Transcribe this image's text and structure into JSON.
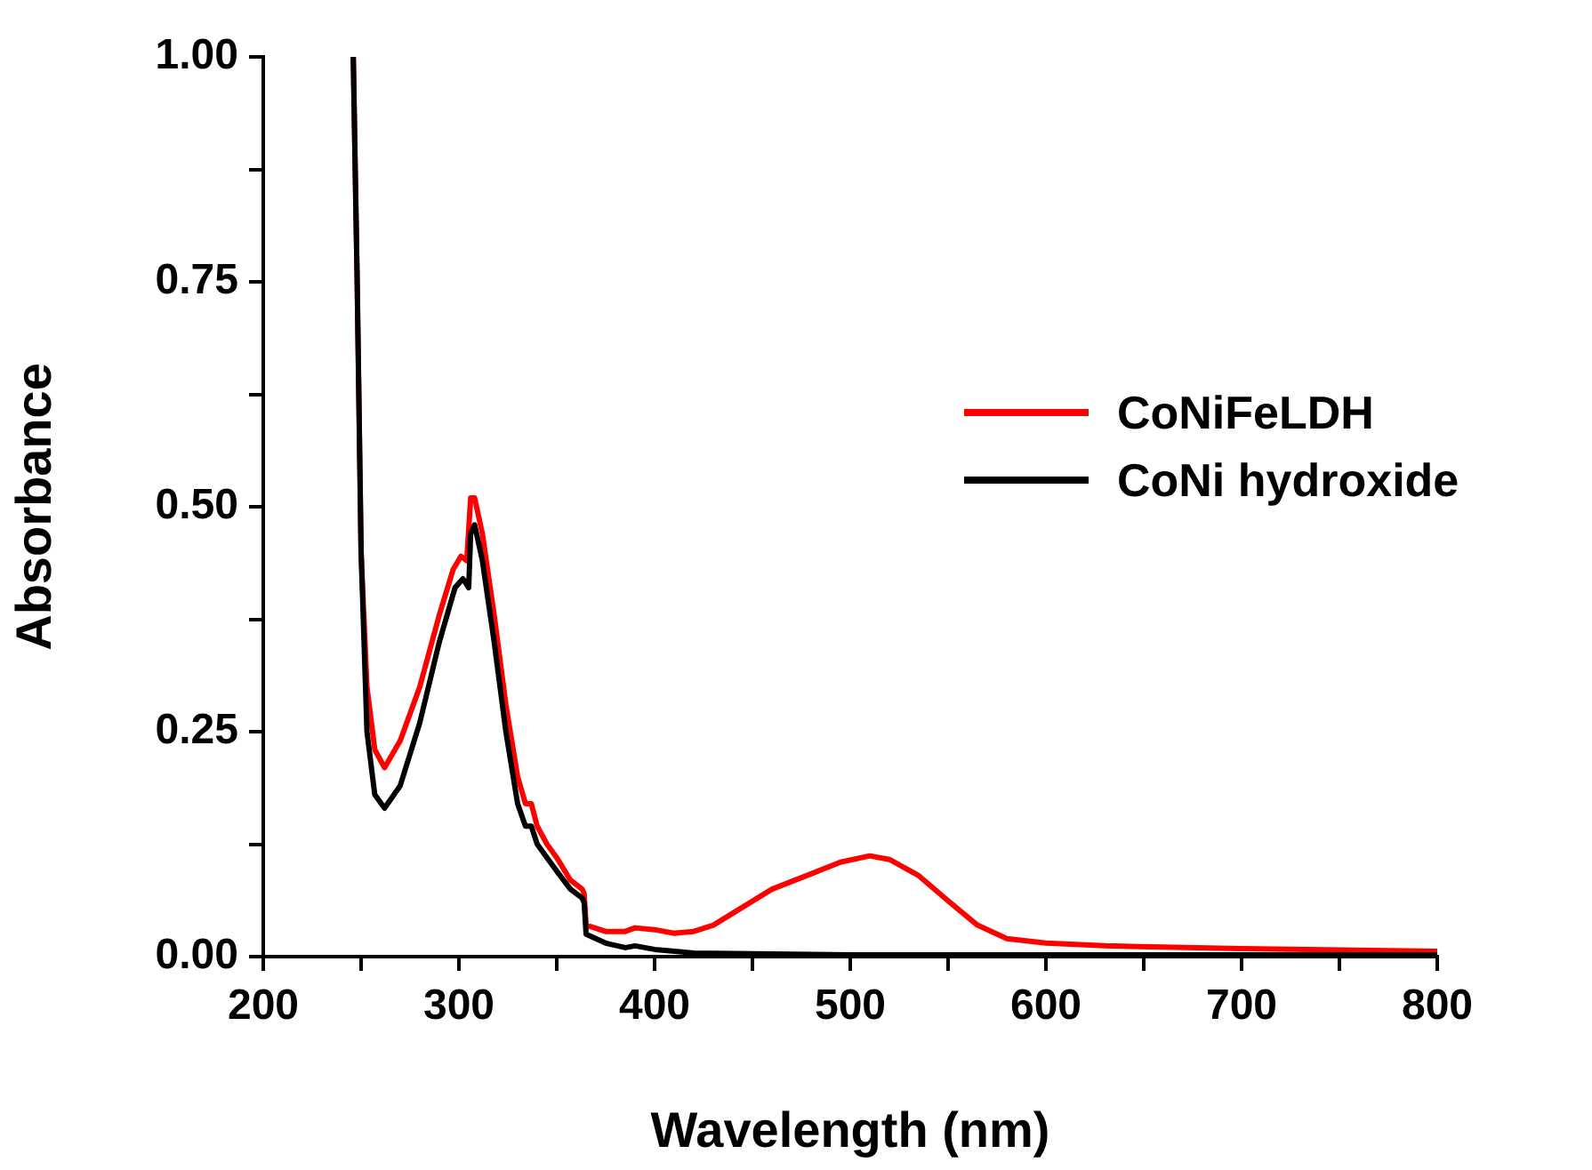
{
  "chart_data": {
    "type": "line",
    "xlabel": "Wavelength (nm)",
    "ylabel": "Absorbance",
    "xlim": [
      200,
      800
    ],
    "ylim": [
      0,
      1
    ],
    "xticks": [
      200,
      {
        "value": 250,
        "label": null
      },
      300,
      {
        "value": 350,
        "label": null
      },
      400,
      {
        "value": 450,
        "label": null
      },
      500,
      {
        "value": 550,
        "label": null
      },
      600,
      {
        "value": 650,
        "label": null
      },
      700,
      {
        "value": 750,
        "label": null
      },
      800
    ],
    "yticks": [
      "0.00",
      {
        "value": 0.125,
        "label": null
      },
      {
        "value": 0.25,
        "label": "0.25"
      },
      {
        "value": 0.375,
        "label": null
      },
      {
        "value": 0.5,
        "label": "0.50"
      },
      {
        "value": 0.625,
        "label": null
      },
      {
        "value": 0.75,
        "label": "0.75"
      },
      {
        "value": 0.875,
        "label": null
      },
      {
        "value": 1,
        "label": "1.00"
      }
    ],
    "grid": false,
    "legend": "right",
    "marker": "none",
    "line_style": "solid",
    "series": [
      {
        "name": "CoNiFeLDH",
        "color": "#ff0000",
        "x": [
          246,
          248,
          250,
          253,
          257,
          262,
          270,
          280,
          290,
          297,
          301,
          304,
          306,
          308,
          312,
          318,
          324,
          330,
          334,
          337,
          340,
          345,
          350,
          357,
          363,
          364,
          365,
          375,
          385,
          390,
          400,
          410,
          420,
          430,
          445,
          460,
          480,
          495,
          510,
          520,
          535,
          550,
          565,
          580,
          600,
          630,
          700,
          800
        ],
        "values": [
          1.0,
          0.75,
          0.45,
          0.3,
          0.23,
          0.21,
          0.24,
          0.3,
          0.38,
          0.43,
          0.445,
          0.44,
          0.51,
          0.51,
          0.47,
          0.38,
          0.28,
          0.2,
          0.17,
          0.17,
          0.145,
          0.125,
          0.11,
          0.085,
          0.075,
          0.07,
          0.035,
          0.028,
          0.028,
          0.032,
          0.03,
          0.026,
          0.028,
          0.035,
          0.055,
          0.075,
          0.092,
          0.105,
          0.112,
          0.108,
          0.09,
          0.062,
          0.035,
          0.02,
          0.015,
          0.012,
          0.009,
          0.006
        ]
      },
      {
        "name": "CoNi hydroxide",
        "color": "#000000",
        "x": [
          246,
          248,
          250,
          253,
          257,
          262,
          270,
          280,
          290,
          298,
          302,
          305,
          306,
          308,
          312,
          318,
          324,
          330,
          334,
          337,
          340,
          345,
          350,
          357,
          363,
          364,
          365,
          375,
          385,
          390,
          400,
          420,
          500,
          800
        ],
        "values": [
          1.0,
          0.75,
          0.45,
          0.25,
          0.18,
          0.165,
          0.19,
          0.26,
          0.35,
          0.41,
          0.42,
          0.41,
          0.47,
          0.48,
          0.44,
          0.35,
          0.25,
          0.17,
          0.145,
          0.145,
          0.125,
          0.11,
          0.095,
          0.075,
          0.065,
          0.06,
          0.025,
          0.015,
          0.01,
          0.012,
          0.008,
          0.004,
          0.002,
          0.002
        ]
      }
    ]
  }
}
